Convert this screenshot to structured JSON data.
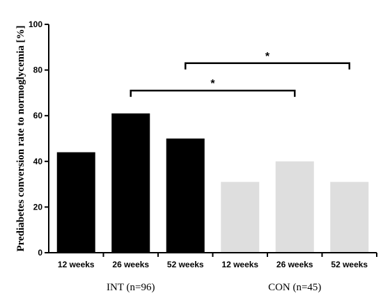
{
  "chart_data": {
    "type": "bar",
    "ylabel": "Prediabetes conversion rate to normoglycemia [%]",
    "xlabel": "",
    "ylim": [
      0,
      100
    ],
    "yticks": [
      0,
      20,
      40,
      60,
      80,
      100
    ],
    "categories": [
      "12 weeks",
      "26 weeks",
      "52 weeks",
      "12 weeks",
      "26 weeks",
      "52 weeks"
    ],
    "values": [
      44,
      61,
      50,
      31,
      40,
      31
    ],
    "colors": [
      "#000000",
      "#000000",
      "#000000",
      "#dedede",
      "#dedede",
      "#dedede"
    ],
    "groups": [
      {
        "label": "INT (n=96)",
        "color": "#000000",
        "indices": [
          0,
          1,
          2
        ]
      },
      {
        "label": "CON (n=45)",
        "color": "#dedede",
        "indices": [
          3,
          4,
          5
        ]
      }
    ],
    "significance": [
      {
        "from": 1,
        "to": 4,
        "y": 71,
        "label": "*"
      },
      {
        "from": 2,
        "to": 5,
        "y": 83,
        "label": "*"
      }
    ],
    "grid": false,
    "legend": "none"
  }
}
